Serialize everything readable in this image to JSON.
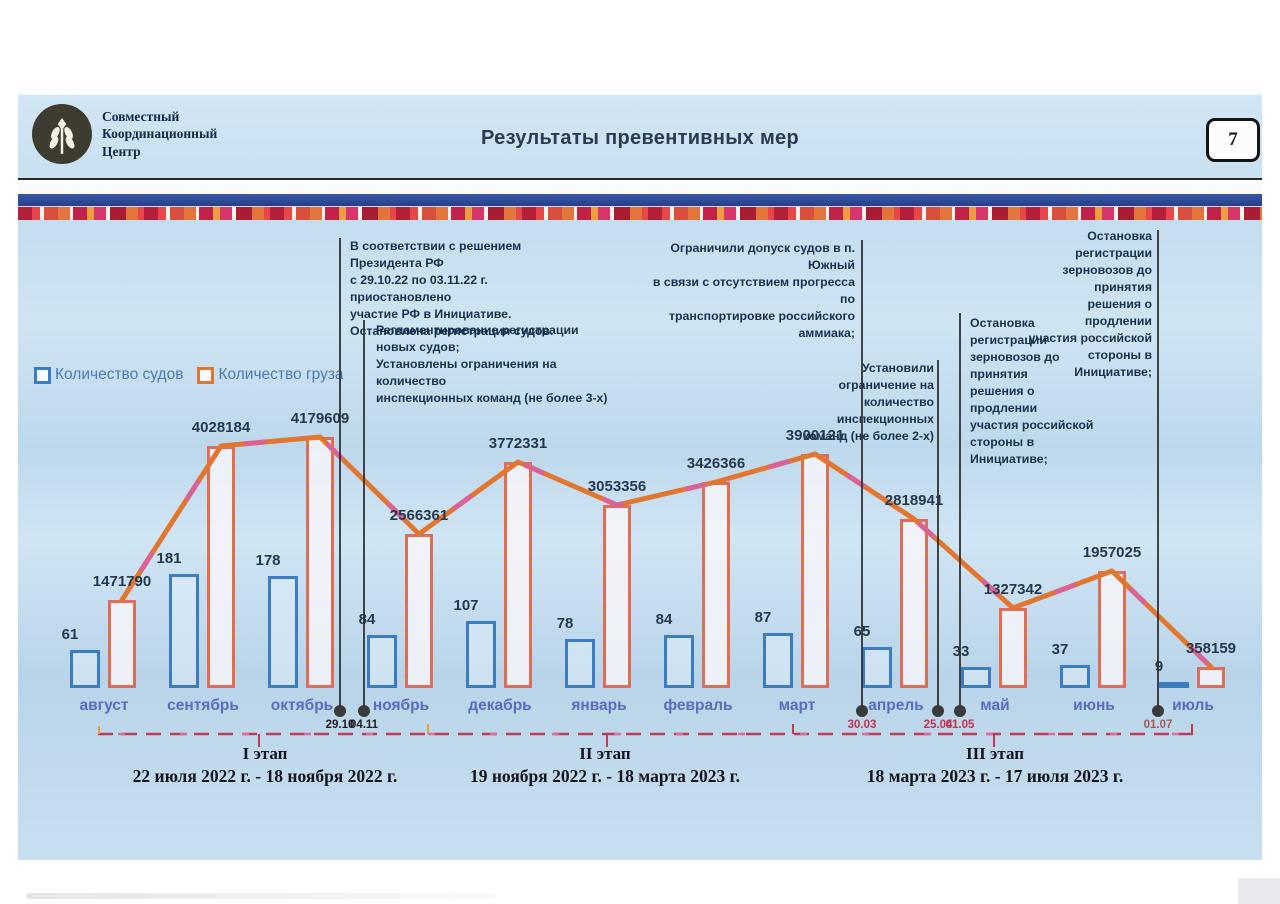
{
  "header": {
    "logo_lines": "Совместный\nКоординационный\nЦентр",
    "title": "Результаты превентивных мер",
    "page_number": "7"
  },
  "legend": {
    "ships_label": "Количество судов",
    "cargo_label": "Количество груза"
  },
  "chart_data": {
    "type": "bar",
    "categories": [
      "август",
      "сентябрь",
      "октябрь",
      "ноябрь",
      "декабрь",
      "январь",
      "февраль",
      "март",
      "апрель",
      "май",
      "июнь",
      "июль"
    ],
    "series": [
      {
        "name": "Количество судов",
        "values": [
          61,
          181,
          178,
          84,
          107,
          78,
          84,
          87,
          65,
          33,
          37,
          9
        ]
      },
      {
        "name": "Количество груза",
        "values": [
          1471790,
          4028184,
          4179609,
          2566361,
          3772331,
          3053356,
          3426366,
          3900121,
          2818941,
          1327342,
          1957025,
          358159
        ]
      }
    ],
    "title": "Результаты превентивных мер",
    "xlabel": "",
    "ylabel": "",
    "grid": false,
    "legend_position": "top-left",
    "trend_line_on": "Количество груза"
  },
  "annotations": [
    {
      "text": "В соответствии с решением Президента РФ\nс 29.10.22 по 03.11.22 г. приостановлено\nучастие РФ в Инициативе.\nОстановлена регистрация судов."
    },
    {
      "text": "Регламентирование регистрации новых судов;\nУстановлены ограничения на количество\nинспекционных команд (не более 3-х)"
    },
    {
      "text": "Ограничили допуск судов в п. Южный\nв связи с отсутствием прогресса по\nтранспортировке российского аммиака;"
    },
    {
      "text": "Установили ограничение на\nколичество инспекционных\nкоманд (не более 2-х)"
    },
    {
      "text": "Остановка регистрации\nзерновозов до принятия\nрешения о продлении\nучастия российской\nстороны в Инициативе;"
    },
    {
      "text": "Остановка регистрации\nзерновозов до принятия\nрешения о продлении\nучастия российской\nстороны в Инициативе;"
    }
  ],
  "events": [
    {
      "date": "29.10",
      "color": "#1f1f1f"
    },
    {
      "date": "04.11",
      "color": "#1f1f1f"
    },
    {
      "date": "30.03",
      "color": "#c2334d"
    },
    {
      "date": "25.04",
      "color": "#c2334d"
    },
    {
      "date": "01.05",
      "color": "#c2334d"
    },
    {
      "date": "01.07",
      "color": "#a05a5a"
    }
  ],
  "stages": [
    {
      "label": "I этап",
      "range": "22 июля 2022 г. - 18 ноября 2022 г."
    },
    {
      "label": "II этап",
      "range": "19 ноября 2022 г. - 18 марта 2023 г."
    },
    {
      "label": "III этап",
      "range": "18 марта 2023 г. - 17 июля 2023 г."
    }
  ],
  "colors": {
    "ships_bar": "#3c7cc0",
    "cargo_bar": "#e2762f",
    "cargo_dash": "#d95fa4",
    "month_label": "#5a6cc0",
    "value_label": "#26384f",
    "timeline": "#c23a56",
    "navy_band": "#2e4a96"
  }
}
